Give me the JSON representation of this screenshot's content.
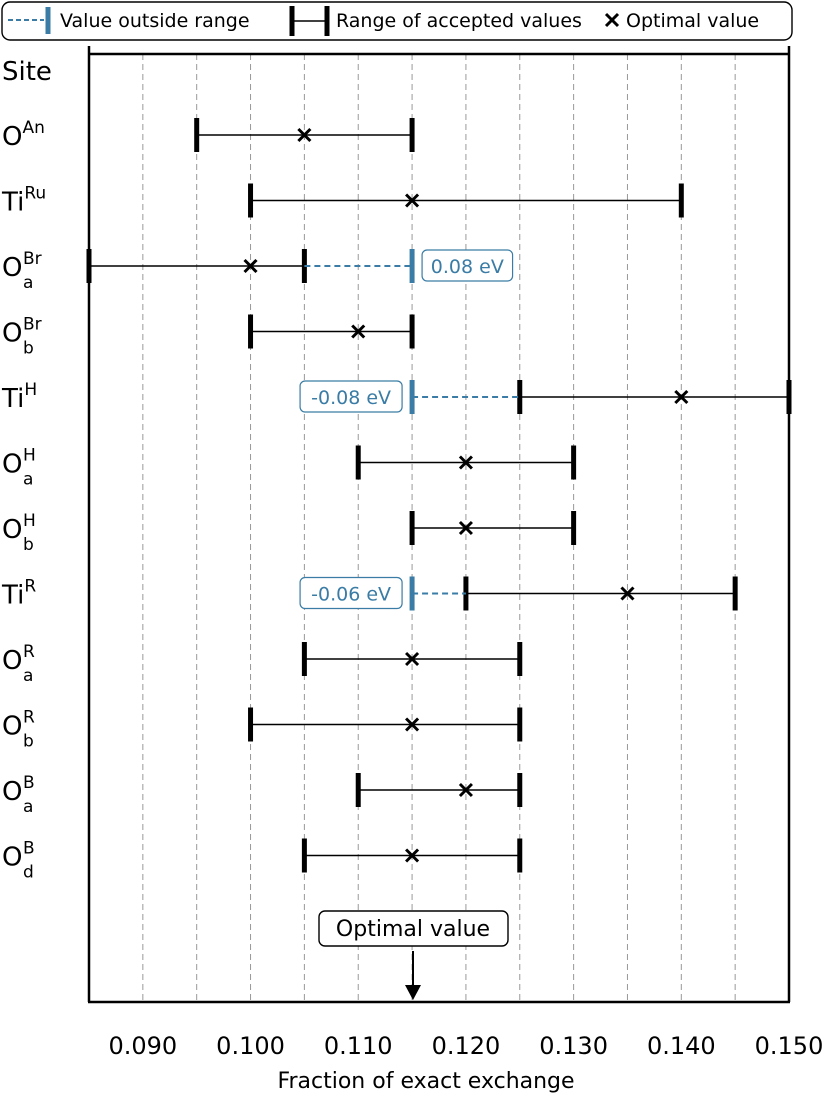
{
  "chart_data": {
    "type": "range",
    "xlabel": "Fraction of exact exchange",
    "xlim": [
      0.085,
      0.15
    ],
    "xticks": [
      "0.090",
      "0.100",
      "0.110",
      "0.120",
      "0.130",
      "0.140",
      "0.150"
    ],
    "xtick_values": [
      0.09,
      0.1,
      0.11,
      0.12,
      0.13,
      0.14,
      0.15
    ],
    "grid_x": [
      0.085,
      0.09,
      0.095,
      0.1,
      0.105,
      0.11,
      0.115,
      0.12,
      0.125,
      0.13,
      0.135,
      0.14,
      0.145,
      0.15
    ],
    "ylabel": "Site",
    "reference_value": 0.115,
    "reference_label": "Optimal value",
    "legend": {
      "placement": "top",
      "items": [
        {
          "kind": "outside",
          "label": "Value outside range"
        },
        {
          "kind": "range",
          "label": "Range of accepted values"
        },
        {
          "kind": "optimal",
          "label": "Optimal value"
        }
      ]
    },
    "colors": {
      "range": "#000000",
      "outside": "#3a7ca5",
      "grid": "#999999"
    },
    "sites": [
      {
        "base": "O",
        "sup": "An",
        "sub": "",
        "min": 0.095,
        "max": 0.115,
        "optimal": 0.105
      },
      {
        "base": "Ti",
        "sup": "Ru",
        "sub": "",
        "min": 0.1,
        "max": 0.14,
        "optimal": 0.115
      },
      {
        "base": "O",
        "sup": "Br",
        "sub": "a",
        "min": 0.085,
        "max": 0.105,
        "optimal": 0.1,
        "outside": {
          "from": 0.105,
          "to": 0.115,
          "label": "0.08 eV",
          "label_side": "right"
        }
      },
      {
        "base": "O",
        "sup": "Br",
        "sub": "b",
        "min": 0.1,
        "max": 0.115,
        "optimal": 0.11
      },
      {
        "base": "Ti",
        "sup": "H",
        "sub": "",
        "min": 0.125,
        "max": 0.15,
        "optimal": 0.14,
        "outside": {
          "from": 0.115,
          "to": 0.125,
          "label": "-0.08 eV",
          "label_side": "left"
        }
      },
      {
        "base": "O",
        "sup": "H",
        "sub": "a",
        "min": 0.11,
        "max": 0.13,
        "optimal": 0.12
      },
      {
        "base": "O",
        "sup": "H",
        "sub": "b",
        "min": 0.115,
        "max": 0.13,
        "optimal": 0.12
      },
      {
        "base": "Ti",
        "sup": "R",
        "sub": "",
        "min": 0.12,
        "max": 0.145,
        "optimal": 0.135,
        "outside": {
          "from": 0.115,
          "to": 0.12,
          "label": "-0.06 eV",
          "label_side": "left"
        }
      },
      {
        "base": "O",
        "sup": "R",
        "sub": "a",
        "min": 0.105,
        "max": 0.125,
        "optimal": 0.115
      },
      {
        "base": "O",
        "sup": "R",
        "sub": "b",
        "min": 0.1,
        "max": 0.125,
        "optimal": 0.115
      },
      {
        "base": "O",
        "sup": "B",
        "sub": "a",
        "min": 0.11,
        "max": 0.125,
        "optimal": 0.12
      },
      {
        "base": "O",
        "sup": "B",
        "sub": "d",
        "min": 0.105,
        "max": 0.125,
        "optimal": 0.115
      }
    ]
  }
}
